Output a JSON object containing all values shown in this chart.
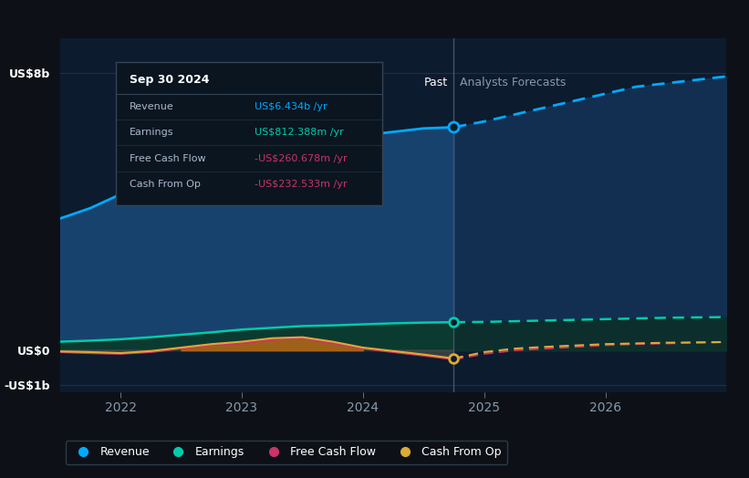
{
  "bg_color": "#0d1117",
  "plot_bg_color": "#0d1b2e",
  "grid_color": "#1e3050",
  "text_color": "#ffffff",
  "dim_text_color": "#8899aa",
  "divider_x": 2024.75,
  "ylabel_8b": "US$8b",
  "ylabel_0": "US$0",
  "ylabel_neg1b": "-US$1b",
  "past_label": "Past",
  "forecast_label": "Analysts Forecasts",
  "x_ticks": [
    2022,
    2023,
    2024,
    2025,
    2026
  ],
  "xlim": [
    2021.5,
    2027.0
  ],
  "ylim": [
    -1.2,
    9.0
  ],
  "revenue_color": "#00aaff",
  "revenue_fill": "#1a4a7a",
  "earnings_color": "#00ccaa",
  "earnings_fill": "#0a3a30",
  "fcf_color": "#cc3366",
  "cashfromop_color": "#ddaa33",
  "tooltip_bg": "#0a1520",
  "tooltip_border": "#334455",
  "tooltip_title": "Sep 30 2024",
  "tooltip_items": [
    {
      "label": "Revenue",
      "value": "US$6.434b /yr",
      "color": "#00aaff"
    },
    {
      "label": "Earnings",
      "value": "US$812.388m /yr",
      "color": "#00ccaa"
    },
    {
      "label": "Free Cash Flow",
      "value": "-US$260.678m /yr",
      "color": "#cc3366"
    },
    {
      "label": "Cash From Op",
      "value": "-US$232.533m /yr",
      "color": "#cc3366"
    }
  ],
  "legend_items": [
    {
      "label": "Revenue",
      "color": "#00aaff"
    },
    {
      "label": "Earnings",
      "color": "#00ccaa"
    },
    {
      "label": "Free Cash Flow",
      "color": "#cc3366"
    },
    {
      "label": "Cash From Op",
      "color": "#ddaa33"
    }
  ],
  "revenue_past": {
    "x": [
      2021.5,
      2021.75,
      2022.0,
      2022.25,
      2022.5,
      2022.75,
      2023.0,
      2023.25,
      2023.5,
      2023.75,
      2024.0,
      2024.25,
      2024.5,
      2024.75
    ],
    "y": [
      3.8,
      4.1,
      4.5,
      5.0,
      5.5,
      5.9,
      6.2,
      6.5,
      6.6,
      6.4,
      6.2,
      6.3,
      6.4,
      6.434
    ]
  },
  "revenue_future": {
    "x": [
      2024.75,
      2025.0,
      2025.25,
      2025.5,
      2025.75,
      2026.0,
      2026.25,
      2026.5,
      2026.75,
      2027.0
    ],
    "y": [
      6.434,
      6.6,
      6.8,
      7.0,
      7.2,
      7.4,
      7.6,
      7.7,
      7.8,
      7.9
    ]
  },
  "earnings_past": {
    "x": [
      2021.5,
      2021.75,
      2022.0,
      2022.25,
      2022.5,
      2022.75,
      2023.0,
      2023.25,
      2023.5,
      2023.75,
      2024.0,
      2024.25,
      2024.5,
      2024.75
    ],
    "y": [
      0.25,
      0.28,
      0.32,
      0.38,
      0.45,
      0.52,
      0.6,
      0.65,
      0.7,
      0.72,
      0.75,
      0.78,
      0.8,
      0.812
    ]
  },
  "earnings_future": {
    "x": [
      2024.75,
      2025.0,
      2025.25,
      2025.5,
      2025.75,
      2026.0,
      2026.25,
      2026.5,
      2026.75,
      2027.0
    ],
    "y": [
      0.812,
      0.82,
      0.84,
      0.86,
      0.88,
      0.9,
      0.92,
      0.94,
      0.95,
      0.96
    ]
  },
  "fcf_past": {
    "x": [
      2021.5,
      2021.75,
      2022.0,
      2022.25,
      2022.5,
      2022.75,
      2023.0,
      2023.25,
      2023.5,
      2023.75,
      2024.0,
      2024.25,
      2024.5,
      2024.75
    ],
    "y": [
      -0.05,
      -0.08,
      -0.1,
      -0.05,
      0.05,
      0.15,
      0.2,
      0.3,
      0.35,
      0.2,
      0.05,
      -0.05,
      -0.15,
      -0.261
    ]
  },
  "fcf_future": {
    "x": [
      2024.75,
      2025.0,
      2025.25,
      2025.5,
      2025.75,
      2026.0,
      2026.25,
      2026.5,
      2026.75,
      2027.0
    ],
    "y": [
      -0.261,
      -0.1,
      0.0,
      0.05,
      0.1,
      0.15,
      0.18,
      0.2,
      0.22,
      0.24
    ]
  },
  "cashop_past": {
    "x": [
      2021.5,
      2021.75,
      2022.0,
      2022.25,
      2022.5,
      2022.75,
      2023.0,
      2023.25,
      2023.5,
      2023.75,
      2024.0,
      2024.25,
      2024.5,
      2024.75
    ],
    "y": [
      -0.03,
      -0.05,
      -0.08,
      -0.02,
      0.08,
      0.18,
      0.25,
      0.35,
      0.38,
      0.25,
      0.08,
      -0.02,
      -0.12,
      -0.233
    ]
  },
  "cashop_future": {
    "x": [
      2024.75,
      2025.0,
      2025.25,
      2025.5,
      2025.75,
      2026.0,
      2026.25,
      2026.5,
      2026.75,
      2027.0
    ],
    "y": [
      -0.233,
      -0.05,
      0.05,
      0.1,
      0.14,
      0.18,
      0.2,
      0.22,
      0.23,
      0.24
    ]
  }
}
